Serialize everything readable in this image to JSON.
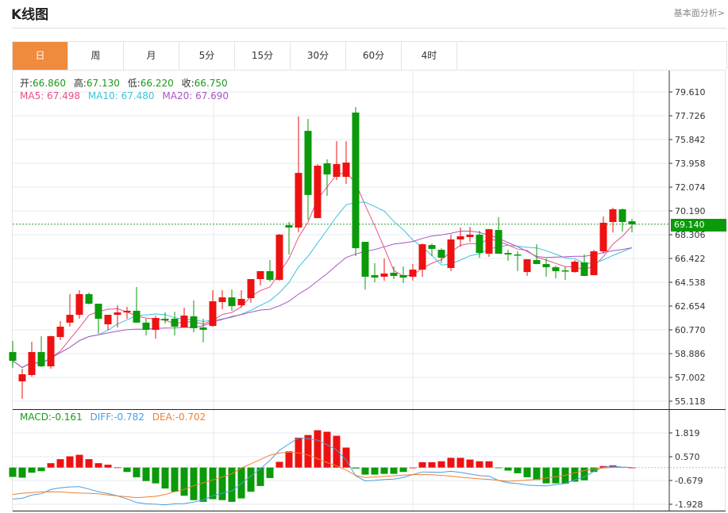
{
  "header": {
    "title": "K线图",
    "link": "基本面分析>"
  },
  "tabs": [
    {
      "label": "日",
      "active": true
    },
    {
      "label": "周"
    },
    {
      "label": "月"
    },
    {
      "label": "5分"
    },
    {
      "label": "15分"
    },
    {
      "label": "30分"
    },
    {
      "label": "60分"
    },
    {
      "label": "4时"
    }
  ],
  "ohlc_info": {
    "open_label": "开:",
    "open": "66.860",
    "high_label": "高:",
    "high": "67.130",
    "low_label": "低:",
    "low": "66.220",
    "close_label": "收:",
    "close": "66.750"
  },
  "ma_info": {
    "ma5": "MA5: 67.498",
    "ma10": "MA10: 67.480",
    "ma20": "MA20: 67.690"
  },
  "macd_info": {
    "macd": "MACD:-0.161",
    "diff": "DIFF:-0.782",
    "dea": "DEA:-0.702"
  },
  "current_price": "69.140",
  "colors": {
    "up": "#ee1111",
    "down": "#0a9a0a",
    "ma5": "#e8508a",
    "ma10": "#3cc4d8",
    "ma20": "#a855c0",
    "diff": "#4a9ee0",
    "dea": "#f08030",
    "accent": "#f08a3c"
  },
  "chart_data": [
    {
      "type": "candlestick",
      "ylim": [
        55.118,
        79.61
      ],
      "y_ticks": [
        "79.610",
        "77.726",
        "75.842",
        "73.958",
        "72.074",
        "70.190",
        "68.306",
        "66.422",
        "64.538",
        "62.654",
        "60.770",
        "58.886",
        "57.002",
        "55.118"
      ],
      "current_price_line": 69.14,
      "grid": true,
      "ohlc": [
        [
          59.01,
          59.89,
          57.76,
          58.32
        ],
        [
          56.69,
          57.69,
          55.31,
          57.25
        ],
        [
          57.19,
          59.83,
          57.06,
          59.01
        ],
        [
          59.01,
          60.27,
          57.82,
          57.88
        ],
        [
          57.88,
          60.3,
          57.69,
          60.27
        ],
        [
          60.2,
          61.46,
          59.95,
          61.02
        ],
        [
          61.34,
          63.6,
          61.02,
          61.96
        ],
        [
          61.96,
          63.91,
          61.65,
          63.6
        ],
        [
          63.6,
          63.72,
          62.78,
          62.84
        ],
        [
          62.84,
          62.84,
          60.46,
          61.65
        ],
        [
          61.21,
          61.96,
          60.77,
          61.96
        ],
        [
          61.96,
          62.72,
          60.96,
          62.15
        ],
        [
          62.15,
          62.6,
          61.65,
          62.28
        ],
        [
          62.28,
          64.16,
          61.34,
          61.34
        ],
        [
          61.34,
          61.65,
          60.33,
          60.77
        ],
        [
          60.77,
          61.9,
          60.08,
          61.71
        ],
        [
          61.65,
          62.15,
          61.27,
          61.52
        ],
        [
          61.65,
          62.2,
          60.33,
          61.02
        ],
        [
          60.96,
          62.53,
          60.96,
          61.9
        ],
        [
          61.84,
          63.09,
          60.58,
          60.9
        ],
        [
          60.96,
          61.65,
          59.77,
          60.77
        ],
        [
          61.08,
          63.91,
          61.02,
          63.03
        ],
        [
          62.97,
          63.91,
          62.4,
          63.34
        ],
        [
          63.34,
          63.97,
          62.28,
          62.65
        ],
        [
          62.72,
          63.91,
          62.53,
          63.22
        ],
        [
          63.28,
          64.79,
          62.91,
          64.79
        ],
        [
          64.79,
          65.42,
          64.29,
          65.42
        ],
        [
          65.42,
          66.3,
          64.6,
          64.73
        ],
        [
          64.73,
          68.37,
          64.66,
          68.31
        ],
        [
          69.06,
          69.31,
          66.74,
          68.87
        ],
        [
          68.87,
          77.66,
          68.49,
          73.2
        ],
        [
          76.53,
          77.47,
          69.5,
          71.45
        ],
        [
          69.62,
          73.9,
          69.62,
          73.77
        ],
        [
          73.96,
          74.27,
          71.38,
          73.08
        ],
        [
          72.89,
          75.72,
          72.64,
          73.9
        ],
        [
          72.89,
          75.72,
          72.33,
          74.02
        ],
        [
          77.98,
          78.42,
          66.61,
          67.24
        ],
        [
          67.74,
          67.74,
          63.97,
          64.98
        ],
        [
          65.1,
          66.05,
          64.54,
          64.91
        ],
        [
          64.98,
          66.42,
          64.66,
          65.23
        ],
        [
          65.29,
          65.79,
          64.79,
          65.04
        ],
        [
          65.1,
          65.79,
          64.48,
          64.91
        ],
        [
          64.98,
          65.98,
          64.66,
          65.54
        ],
        [
          65.54,
          67.61,
          64.98,
          67.55
        ],
        [
          67.49,
          67.61,
          66.61,
          67.18
        ],
        [
          67.11,
          67.24,
          66.05,
          66.48
        ],
        [
          65.67,
          68.31,
          65.42,
          67.93
        ],
        [
          67.93,
          68.87,
          67.36,
          68.18
        ],
        [
          68.12,
          68.93,
          67.74,
          68.31
        ],
        [
          68.31,
          68.62,
          66.48,
          66.86
        ],
        [
          66.8,
          68.74,
          66.55,
          68.74
        ],
        [
          68.68,
          69.69,
          66.8,
          66.8
        ],
        [
          66.86,
          67.11,
          66.23,
          66.74
        ],
        [
          66.74,
          66.99,
          65.42,
          66.67
        ],
        [
          65.35,
          66.36,
          65.04,
          66.36
        ],
        [
          66.3,
          67.55,
          65.98,
          65.98
        ],
        [
          65.98,
          66.42,
          64.98,
          65.73
        ],
        [
          65.73,
          65.86,
          64.85,
          65.42
        ],
        [
          65.48,
          65.79,
          64.73,
          65.42
        ],
        [
          65.35,
          66.3,
          65.29,
          66.17
        ],
        [
          66.11,
          66.74,
          65.04,
          65.04
        ],
        [
          65.1,
          67.11,
          65.1,
          66.99
        ],
        [
          66.99,
          69.75,
          66.8,
          69.25
        ],
        [
          69.31,
          70.44,
          68.49,
          70.32
        ],
        [
          70.32,
          70.38,
          68.56,
          69.31
        ],
        [
          69.37,
          69.56,
          68.49,
          69.12
        ]
      ],
      "series": [
        {
          "name": "MA5",
          "period": 5
        },
        {
          "name": "MA10",
          "period": 10
        },
        {
          "name": "MA20",
          "period": 20
        }
      ]
    },
    {
      "type": "macd",
      "ylim": [
        -2.2,
        2.3
      ],
      "y_ticks": [
        "1.819",
        "0.570",
        "-0.679",
        "-1.928"
      ],
      "macd": [
        -0.49,
        -0.53,
        -0.27,
        -0.19,
        0.23,
        0.44,
        0.59,
        0.67,
        0.44,
        0.23,
        0.15,
        0.01,
        -0.23,
        -0.51,
        -0.71,
        -0.83,
        -1.1,
        -1.27,
        -1.48,
        -1.71,
        -1.8,
        -1.66,
        -1.71,
        -1.8,
        -1.62,
        -1.27,
        -0.97,
        -0.55,
        0.3,
        0.85,
        1.57,
        1.71,
        1.96,
        1.88,
        1.67,
        1.05,
        -0.05,
        -0.37,
        -0.37,
        -0.33,
        -0.33,
        -0.23,
        0.0,
        0.28,
        0.28,
        0.33,
        0.51,
        0.51,
        0.42,
        0.33,
        0.33,
        -0.02,
        -0.16,
        -0.3,
        -0.51,
        -0.65,
        -0.83,
        -0.83,
        -0.85,
        -0.74,
        -0.67,
        -0.23,
        0.08,
        0.12,
        0.03,
        0.0
      ],
      "dea": [
        -1.41,
        -1.35,
        -1.31,
        -1.28,
        -1.27,
        -1.28,
        -1.31,
        -1.34,
        -1.35,
        -1.38,
        -1.44,
        -1.49,
        -1.53,
        -1.58,
        -1.55,
        -1.51,
        -1.41,
        -1.27,
        -1.15,
        -0.96,
        -0.8,
        -0.65,
        -0.49,
        -0.33,
        -0.02,
        0.19,
        0.42,
        0.65,
        0.76,
        0.81,
        0.77,
        0.66,
        0.46,
        0.26,
        0.09,
        -0.13,
        -0.41,
        -0.52,
        -0.49,
        -0.46,
        -0.44,
        -0.4,
        -0.37,
        -0.37,
        -0.38,
        -0.41,
        -0.45,
        -0.51,
        -0.55,
        -0.59,
        -0.62,
        -0.67,
        -0.72,
        -0.69,
        -0.66,
        -0.62,
        -0.55,
        -0.48,
        -0.41,
        -0.27,
        -0.16,
        -0.08,
        -0.02,
        0.01,
        0.01,
        0.01
      ],
      "series": [
        {
          "name": "MACD"
        },
        {
          "name": "DIFF"
        },
        {
          "name": "DEA"
        }
      ]
    }
  ]
}
